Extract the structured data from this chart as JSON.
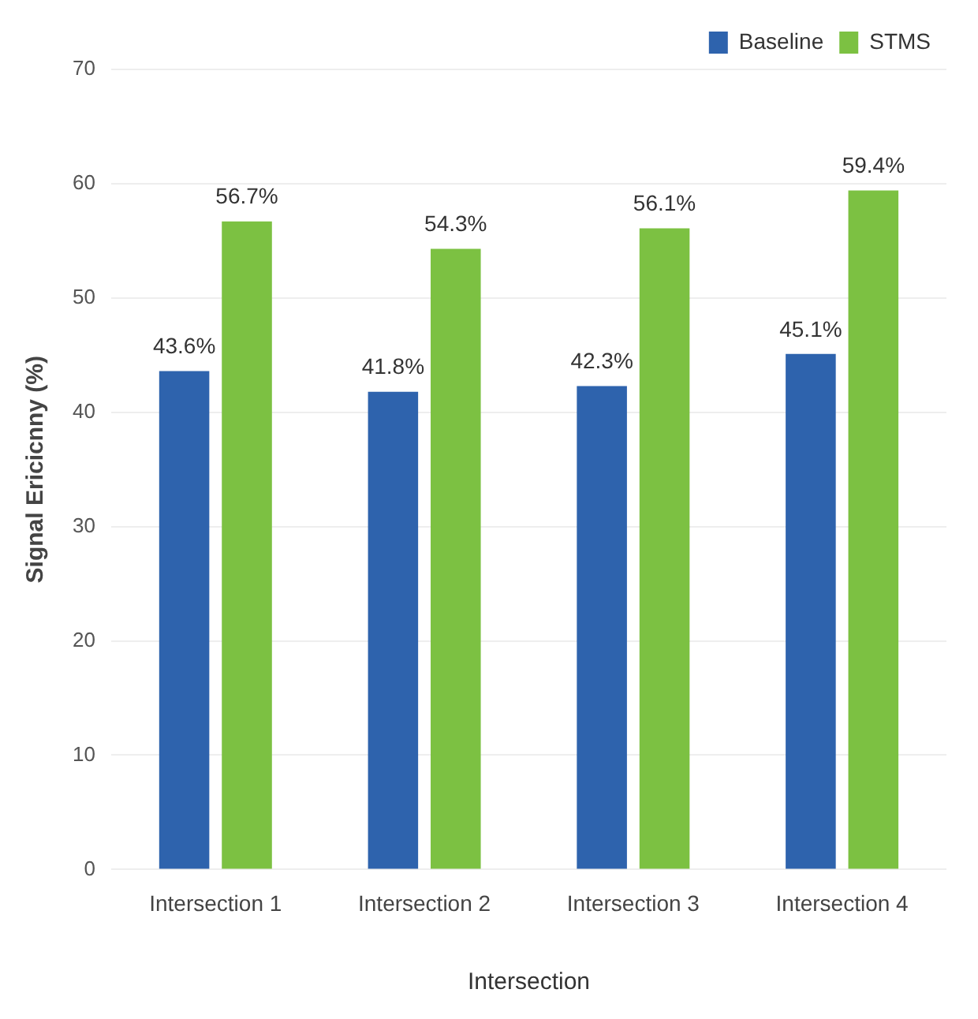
{
  "chart_data": {
    "type": "bar",
    "xlabel": "Intersection",
    "ylabel": "Signal Ericicnny (%)",
    "categories": [
      "Intersection 1",
      "Intersection 2",
      "Intersection 3",
      "Intersection 4"
    ],
    "series": [
      {
        "name": "Baseline",
        "color": "#2e63ad",
        "values": [
          43.6,
          41.8,
          42.3,
          45.1
        ],
        "value_labels": [
          "43.6%",
          "41.8%",
          "42.3%",
          "45.1%"
        ]
      },
      {
        "name": "STMS",
        "color": "#7cc142",
        "values": [
          56.7,
          54.3,
          56.1,
          59.4
        ],
        "value_labels": [
          "56.7%",
          "54.3%",
          "56.1%",
          "59.4%"
        ]
      }
    ],
    "ylim": [
      0,
      70
    ],
    "yticks": [
      0,
      10,
      20,
      30,
      40,
      50,
      60,
      70
    ],
    "grid": "y",
    "legend": "top right"
  }
}
